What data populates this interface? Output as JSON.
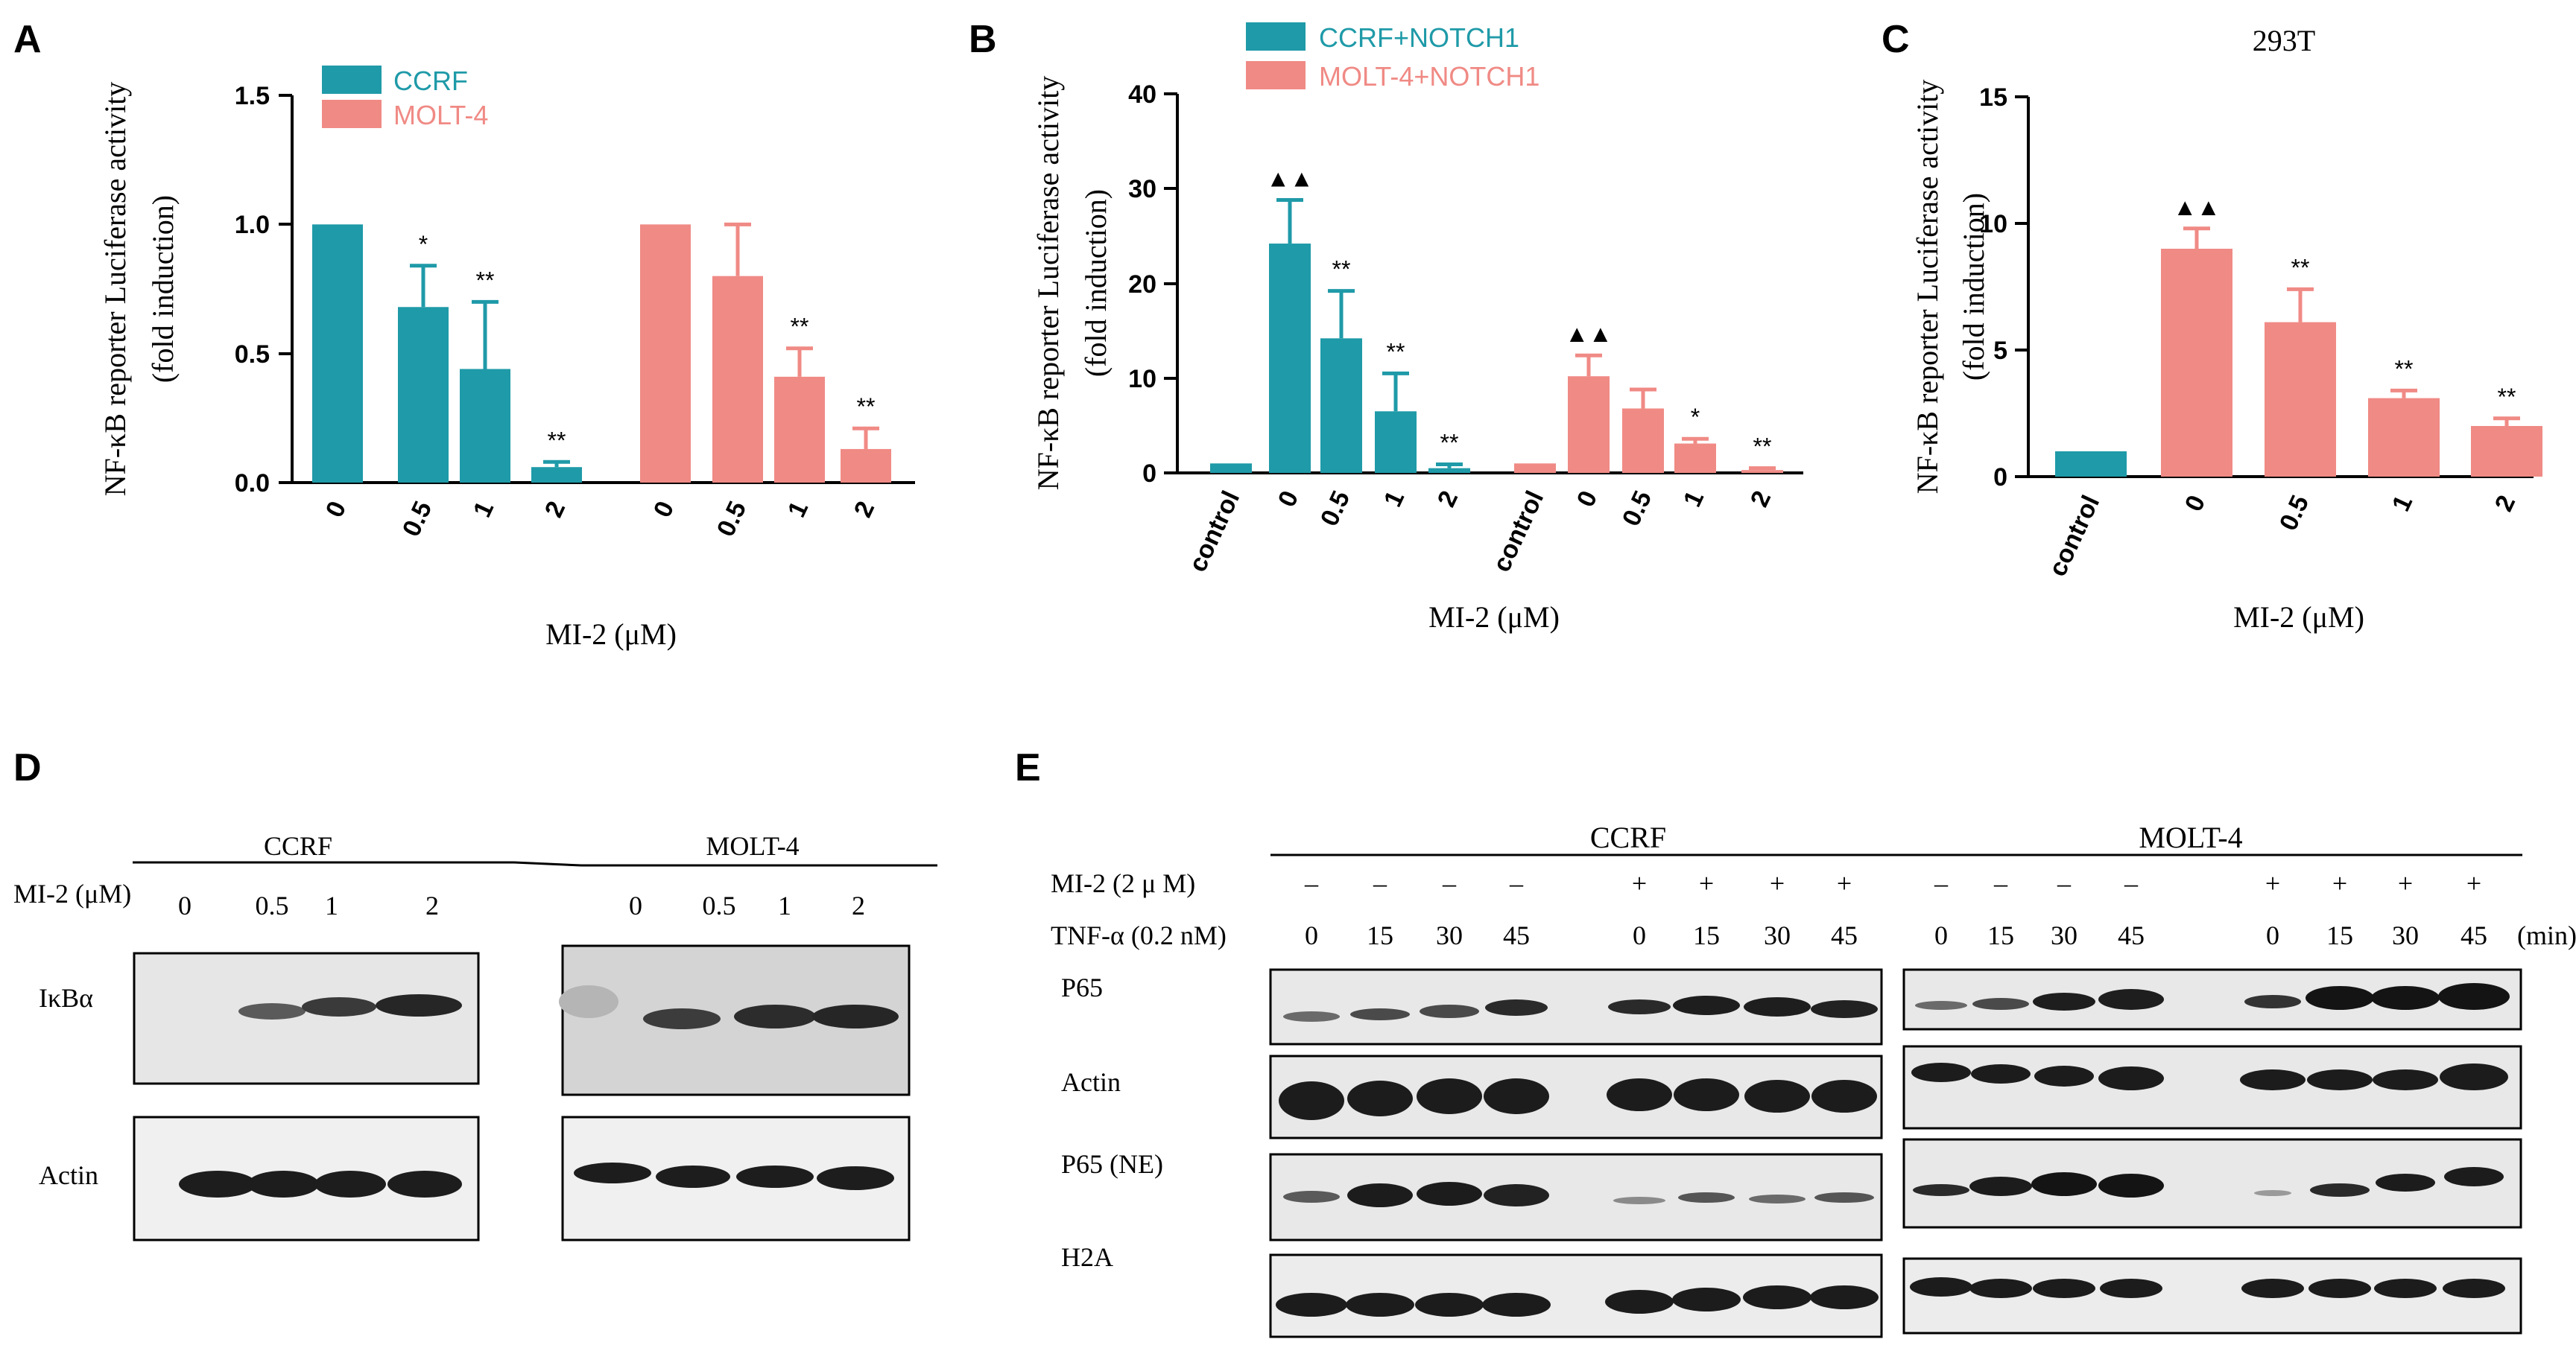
{
  "colors": {
    "teal": "#1f9aa8",
    "salmon": "#f08a85"
  },
  "panels": {
    "A": {
      "letter": "A",
      "legend": [
        "CCRF",
        "MOLT-4"
      ],
      "ylabel_line1": "NF-κB reporter Luciferase activity",
      "ylabel_line2": "(fold induction)",
      "xlabel": "MI-2 (μM)",
      "yticks": [
        "0.0",
        "0.5",
        "1.0",
        "1.5"
      ]
    },
    "B": {
      "letter": "B",
      "legend": [
        "CCRF+NOTCH1",
        "MOLT-4+NOTCH1"
      ],
      "ylabel_line1": "NF-κB reporter Luciferase activity",
      "ylabel_line2": "(fold induction)",
      "xlabel": "MI-2 (μM)",
      "yticks": [
        "0",
        "10",
        "20",
        "30",
        "40"
      ]
    },
    "C": {
      "letter": "C",
      "title": "293T",
      "ylabel_line1": "NF-κB reporter Luciferase activity",
      "ylabel_line2": "(fold induction)",
      "xlabel": "MI-2 (μM)",
      "yticks": [
        "0",
        "5",
        "10",
        "15"
      ]
    },
    "D": {
      "letter": "D",
      "groups": [
        "CCRF",
        "MOLT-4"
      ],
      "row_header": "MI-2 (μM)",
      "lanes": [
        "0",
        "0.5",
        "1",
        "2"
      ],
      "bands": [
        "IκBα",
        "Actin"
      ]
    },
    "E": {
      "letter": "E",
      "groups": [
        "CCRF",
        "MOLT-4"
      ],
      "mi2_label": "MI-2 (2 μ M)",
      "tnf_label": "TNF-α (0.2 nM)",
      "mi2_signs": [
        "–",
        "–",
        "–",
        "–",
        "+",
        "+",
        "+",
        "+",
        "–",
        "–",
        "–",
        "–",
        "+",
        "+",
        "+",
        "+"
      ],
      "tnf_times": [
        "0",
        "15",
        "30",
        "45",
        "0",
        "15",
        "30",
        "45",
        "0",
        "15",
        "30",
        "45",
        "0",
        "15",
        "30",
        "45"
      ],
      "unit": "(min)",
      "bands": [
        "P65",
        "Actin",
        "P65 (NE)",
        "H2A"
      ]
    }
  },
  "chart_data": [
    {
      "panel": "A",
      "type": "bar",
      "ylim": [
        0,
        1.5
      ],
      "xlabel": "MI-2 (μM)",
      "ylabel": "NF-κB reporter Luciferase activity (fold induction)",
      "groups": [
        {
          "name": "CCRF",
          "color": "#1f9aa8",
          "categories": [
            "0",
            "0.5",
            "1",
            "2"
          ],
          "values": [
            1.0,
            0.68,
            0.44,
            0.06
          ],
          "errors": [
            0,
            0.16,
            0.26,
            0.02
          ],
          "sig": [
            "",
            "*",
            "**",
            "**"
          ]
        },
        {
          "name": "MOLT-4",
          "color": "#f08a85",
          "categories": [
            "0",
            "0.5",
            "1",
            "2"
          ],
          "values": [
            1.0,
            0.8,
            0.41,
            0.13
          ],
          "errors": [
            0,
            0.2,
            0.11,
            0.08
          ],
          "sig": [
            "",
            "",
            "**",
            "**"
          ]
        }
      ]
    },
    {
      "panel": "B",
      "type": "bar",
      "ylim": [
        0,
        40
      ],
      "xlabel": "MI-2 (μM)",
      "ylabel": "NF-κB reporter Luciferase activity (fold induction)",
      "groups": [
        {
          "name": "CCRF+NOTCH1",
          "color": "#1f9aa8",
          "categories": [
            "control",
            "0",
            "0.5",
            "1",
            "2"
          ],
          "values": [
            1.0,
            24.2,
            14.2,
            6.5,
            0.5
          ],
          "errors": [
            0,
            4.6,
            5.0,
            4.0,
            0.4
          ],
          "sig": [
            "",
            "▲▲",
            "**",
            "**",
            "**"
          ]
        },
        {
          "name": "MOLT-4+NOTCH1",
          "color": "#f08a85",
          "categories": [
            "control",
            "0",
            "0.5",
            "1",
            "2"
          ],
          "values": [
            1.0,
            10.2,
            6.8,
            3.1,
            0.3
          ],
          "errors": [
            0,
            2.2,
            2.0,
            0.5,
            0.2
          ],
          "sig": [
            "",
            "▲▲",
            "",
            "*",
            "**"
          ]
        }
      ]
    },
    {
      "panel": "C",
      "type": "bar",
      "title": "293T",
      "ylim": [
        0,
        15
      ],
      "xlabel": "MI-2 (μM)",
      "ylabel": "NF-κB reporter Luciferase activity (fold induction)",
      "categories": [
        "control",
        "0",
        "0.5",
        "1",
        "2"
      ],
      "values": [
        1.0,
        9.0,
        6.1,
        3.1,
        2.0
      ],
      "errors": [
        0,
        0.8,
        1.3,
        0.3,
        0.3
      ],
      "colors": [
        "#1f9aa8",
        "#f08a85",
        "#f08a85",
        "#f08a85",
        "#f08a85"
      ],
      "sig": [
        "",
        "▲▲",
        "**",
        "**",
        "**"
      ]
    }
  ]
}
